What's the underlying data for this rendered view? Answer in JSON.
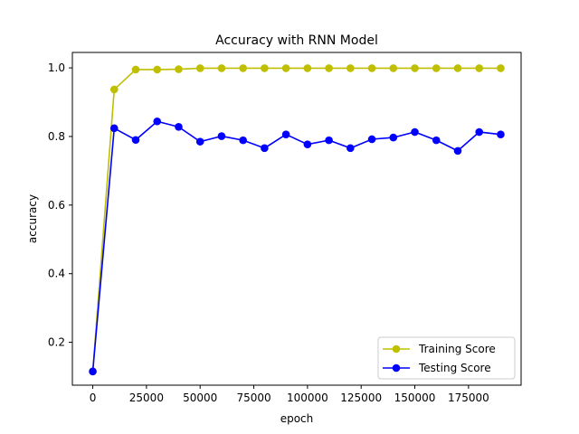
{
  "chart_data": {
    "type": "line",
    "title": "Accuracy with RNN Model",
    "xlabel": "epoch",
    "ylabel": "accuracy",
    "xlim": [
      -9500,
      199500
    ],
    "ylim": [
      0.075,
      1.045
    ],
    "x_ticks": [
      0,
      25000,
      50000,
      75000,
      100000,
      125000,
      150000,
      175000
    ],
    "y_ticks": [
      0.2,
      0.4,
      0.6,
      0.8,
      1.0
    ],
    "x_tick_labels": [
      "0",
      "25000",
      "50000",
      "75000",
      "100000",
      "125000",
      "150000",
      "175000"
    ],
    "y_tick_labels": [
      "0.2",
      "0.4",
      "0.6",
      "0.8",
      "1.0"
    ],
    "grid": false,
    "legend_position": "lower-right",
    "x": [
      0,
      10000,
      20000,
      30000,
      40000,
      50000,
      60000,
      70000,
      80000,
      90000,
      100000,
      110000,
      120000,
      130000,
      140000,
      150000,
      160000,
      170000,
      180000,
      190000
    ],
    "series": [
      {
        "name": "Training Score",
        "color": "#bfbf00",
        "marker": "circle",
        "values": [
          0.115,
          0.937,
          0.995,
          0.995,
          0.996,
          0.999,
          0.999,
          0.999,
          0.999,
          0.999,
          0.999,
          0.999,
          0.999,
          0.999,
          0.999,
          0.999,
          0.999,
          0.999,
          0.999,
          0.999
        ]
      },
      {
        "name": "Testing Score",
        "color": "#0000ff",
        "marker": "circle",
        "values": [
          0.115,
          0.824,
          0.79,
          0.844,
          0.828,
          0.785,
          0.801,
          0.789,
          0.766,
          0.806,
          0.777,
          0.789,
          0.766,
          0.792,
          0.797,
          0.813,
          0.789,
          0.758,
          0.813,
          0.806
        ]
      }
    ]
  }
}
